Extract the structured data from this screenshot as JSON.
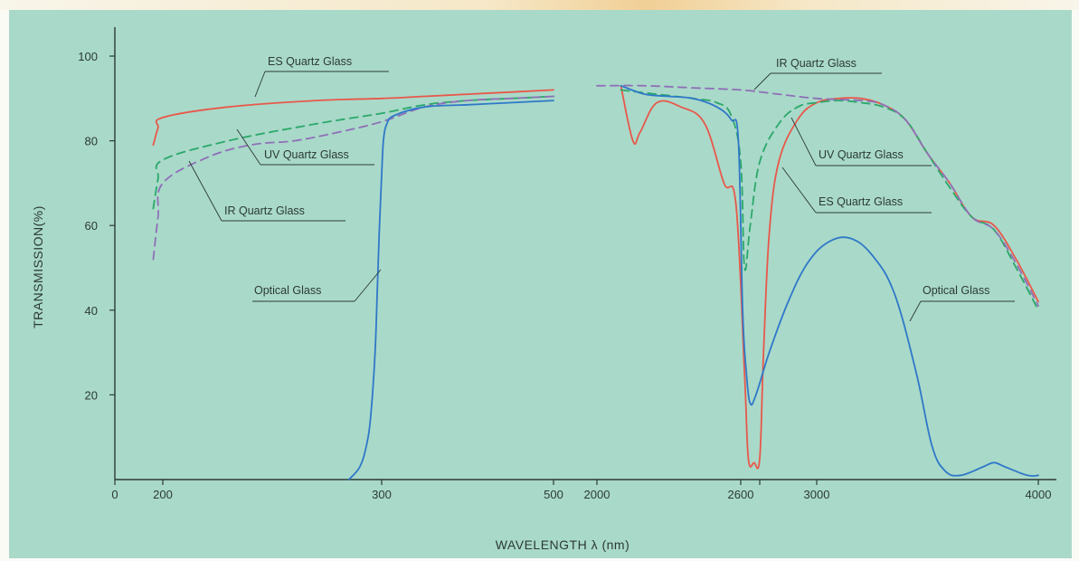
{
  "colors": {
    "background": "#a9d9c9",
    "axis": "#2b3a36",
    "ES Quartz Glass": "#e8584a",
    "UV Quartz Glass": "#2aa86a",
    "IR Quartz Glass": "#8f6fb8",
    "Optical Glass": "#2f78c8"
  },
  "chart_data": {
    "type": "line",
    "title": "",
    "ylabel": "TRANSMISSION(%)",
    "xlabel": "WAVELENGTH λ (nm)",
    "ylim": [
      0,
      100
    ],
    "y_ticks": [
      "20",
      "40",
      "60",
      "80",
      "100"
    ],
    "x_ticks": [
      "0",
      "200",
      "300",
      "500",
      "2000",
      "2600",
      "3000",
      "4000"
    ],
    "x_axis_note": "broken axis: 0–500 nm (left segment) and 2000–4000 nm (right segment)",
    "grid": false,
    "series": [
      {
        "name": "ES Quartz Glass",
        "style": "solid",
        "label": "ES Quartz Glass",
        "left_label": "ES Quartz Glass",
        "right_label": "ES Quartz Glass",
        "points_left": [
          [
            160,
            79
          ],
          [
            180,
            83
          ],
          [
            200,
            85.5
          ],
          [
            230,
            88
          ],
          [
            270,
            89.5
          ],
          [
            300,
            90
          ],
          [
            350,
            90.5
          ],
          [
            400,
            91
          ],
          [
            450,
            91.5
          ],
          [
            500,
            92
          ]
        ],
        "points_right": [
          [
            2100,
            93
          ],
          [
            2150,
            80
          ],
          [
            2180,
            82
          ],
          [
            2250,
            89
          ],
          [
            2350,
            88
          ],
          [
            2450,
            84
          ],
          [
            2530,
            70
          ],
          [
            2580,
            65
          ],
          [
            2620,
            25
          ],
          [
            2640,
            5
          ],
          [
            2670,
            4
          ],
          [
            2700,
            5
          ],
          [
            2720,
            30
          ],
          [
            2750,
            58
          ],
          [
            2800,
            75
          ],
          [
            2900,
            85
          ],
          [
            3000,
            89
          ],
          [
            3100,
            90
          ],
          [
            3200,
            90
          ],
          [
            3300,
            88.5
          ],
          [
            3400,
            85
          ],
          [
            3500,
            77
          ],
          [
            3600,
            70
          ],
          [
            3700,
            62
          ],
          [
            3800,
            60
          ],
          [
            3900,
            52
          ],
          [
            4000,
            42
          ]
        ]
      },
      {
        "name": "UV Quartz Glass",
        "style": "dashed",
        "left_label": "UV Quartz Glass",
        "right_label": "UV Quartz Glass",
        "points_left": [
          [
            160,
            64
          ],
          [
            180,
            71
          ],
          [
            200,
            75.5
          ],
          [
            230,
            80
          ],
          [
            270,
            84
          ],
          [
            300,
            86.5
          ],
          [
            350,
            88.5
          ],
          [
            400,
            89.5
          ],
          [
            450,
            90
          ],
          [
            500,
            90.5
          ]
        ],
        "points_right": [
          [
            2100,
            92
          ],
          [
            2250,
            91
          ],
          [
            2400,
            90
          ],
          [
            2500,
            89
          ],
          [
            2560,
            86
          ],
          [
            2600,
            75
          ],
          [
            2620,
            50
          ],
          [
            2650,
            60
          ],
          [
            2700,
            75
          ],
          [
            2800,
            84
          ],
          [
            2900,
            88
          ],
          [
            3000,
            89
          ],
          [
            3100,
            89.5
          ],
          [
            3200,
            89
          ],
          [
            3300,
            88
          ],
          [
            3400,
            85
          ],
          [
            3500,
            77
          ],
          [
            3600,
            69
          ],
          [
            3700,
            62
          ],
          [
            3800,
            59
          ],
          [
            3900,
            50
          ],
          [
            4000,
            40
          ]
        ]
      },
      {
        "name": "IR Quartz Glass",
        "style": "dashed",
        "left_label": "IR Quartz Glass",
        "right_label": "IR Quartz Glass",
        "points_left": [
          [
            160,
            52
          ],
          [
            180,
            62
          ],
          [
            200,
            70
          ],
          [
            220,
            76
          ],
          [
            240,
            79
          ],
          [
            260,
            80
          ],
          [
            280,
            82
          ],
          [
            300,
            84.5
          ],
          [
            350,
            88
          ],
          [
            400,
            89.5
          ],
          [
            450,
            90
          ],
          [
            500,
            90.5
          ]
        ],
        "points_right": [
          [
            2000,
            93
          ],
          [
            2200,
            93
          ],
          [
            2400,
            92.5
          ],
          [
            2600,
            92
          ],
          [
            2800,
            91
          ],
          [
            3000,
            90
          ],
          [
            3200,
            89.5
          ],
          [
            3300,
            88.5
          ],
          [
            3400,
            85
          ],
          [
            3500,
            77
          ],
          [
            3600,
            70
          ],
          [
            3700,
            62
          ],
          [
            3800,
            59
          ],
          [
            3900,
            51
          ],
          [
            4000,
            41
          ]
        ]
      },
      {
        "name": "Optical Glass",
        "style": "solid",
        "left_label": "Optical Glass",
        "right_label": "Optical Glass",
        "points_left": [
          [
            285,
            0
          ],
          [
            290,
            3
          ],
          [
            293,
            8
          ],
          [
            295,
            15
          ],
          [
            297,
            30
          ],
          [
            298,
            45
          ],
          [
            299,
            60
          ],
          [
            300,
            72
          ],
          [
            302,
            80
          ],
          [
            306,
            84
          ],
          [
            315,
            86
          ],
          [
            350,
            88
          ],
          [
            400,
            88.5
          ],
          [
            450,
            89
          ],
          [
            500,
            89.5
          ]
        ],
        "points_right": [
          [
            2100,
            93
          ],
          [
            2200,
            91
          ],
          [
            2300,
            90.5
          ],
          [
            2400,
            90
          ],
          [
            2500,
            88
          ],
          [
            2560,
            85
          ],
          [
            2590,
            80
          ],
          [
            2610,
            40
          ],
          [
            2630,
            25
          ],
          [
            2650,
            18
          ],
          [
            2680,
            20
          ],
          [
            2750,
            30
          ],
          [
            2850,
            42
          ],
          [
            2950,
            51
          ],
          [
            3050,
            56
          ],
          [
            3150,
            57
          ],
          [
            3250,
            53
          ],
          [
            3350,
            44
          ],
          [
            3450,
            25
          ],
          [
            3520,
            8
          ],
          [
            3580,
            2
          ],
          [
            3650,
            1
          ],
          [
            3750,
            3
          ],
          [
            3800,
            4
          ],
          [
            3850,
            3
          ],
          [
            3950,
            1
          ],
          [
            4000,
            1
          ]
        ]
      }
    ]
  }
}
